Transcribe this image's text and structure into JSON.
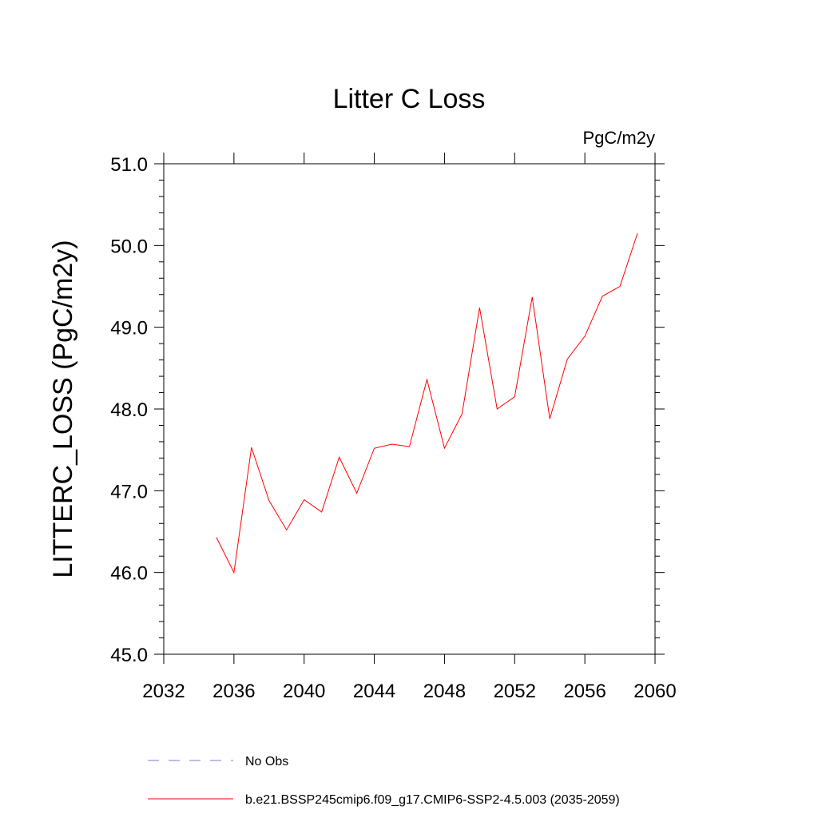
{
  "chart_data": {
    "type": "line",
    "title": "Litter C Loss",
    "units": "PgC/m2y",
    "ylabel": "LITTERC_LOSS  (PgC/m2y)",
    "xlabel": "",
    "xlim": [
      2032,
      2060
    ],
    "ylim": [
      45.0,
      51.0
    ],
    "x_ticks": [
      2032,
      2036,
      2040,
      2044,
      2048,
      2052,
      2056,
      2060
    ],
    "x_tick_labels": [
      "2032",
      "2036",
      "2040",
      "2044",
      "2048",
      "2052",
      "2056",
      "2060"
    ],
    "y_ticks": [
      45.0,
      46.0,
      47.0,
      48.0,
      49.0,
      50.0,
      51.0
    ],
    "y_tick_labels": [
      "45.0",
      "46.0",
      "47.0",
      "48.0",
      "49.0",
      "50.0",
      "51.0"
    ],
    "grid": false,
    "series": [
      {
        "name": "b.e21.BSSP245cmip6.f09_g17.CMIP6-SSP2-4.5.003 (2035-2059)",
        "color": "#ff0000",
        "style": "solid",
        "x": [
          2035,
          2036,
          2037,
          2038,
          2039,
          2040,
          2041,
          2042,
          2043,
          2044,
          2045,
          2046,
          2047,
          2048,
          2049,
          2050,
          2051,
          2052,
          2053,
          2054,
          2055,
          2056,
          2057,
          2058,
          2059
        ],
        "values": [
          46.43,
          46.0,
          47.53,
          46.88,
          46.52,
          46.89,
          46.74,
          47.41,
          46.97,
          47.52,
          47.57,
          47.54,
          48.36,
          47.52,
          47.94,
          49.24,
          48.0,
          48.15,
          49.37,
          47.88,
          48.61,
          48.89,
          49.38,
          49.5,
          50.15
        ]
      }
    ],
    "legend": [
      {
        "label": "No Obs",
        "color": "#7b7bd8",
        "style": "dashed"
      },
      {
        "label": "b.e21.BSSP245cmip6.f09_g17.CMIP6-SSP2-4.5.003 (2035-2059)",
        "color": "#ff0000",
        "style": "solid"
      }
    ],
    "legend_position": "bottom"
  }
}
